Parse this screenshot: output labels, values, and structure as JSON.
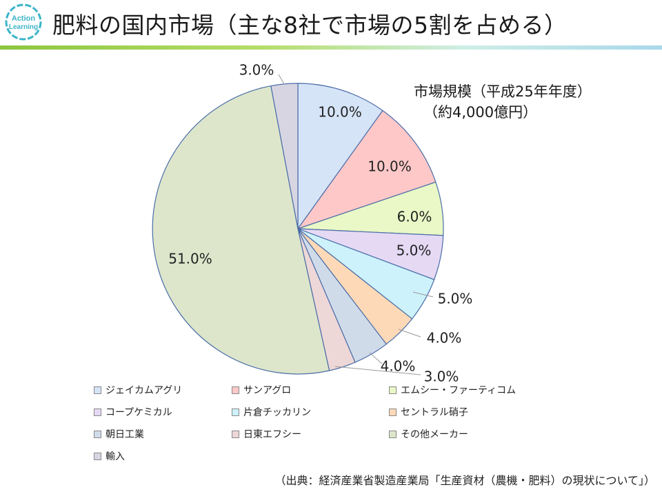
{
  "title": "肥料の国内市場（主な8社で市場の5割を占める）",
  "logo": {
    "line1": "Action",
    "line2": "Learning"
  },
  "market_size": {
    "line1": "市場規模（平成25年年度）",
    "line2": "（約4,000億円）"
  },
  "source": "（出典：経済産業省製造産業局「生産資材（農機・肥料）の現状について」）",
  "chart_data": {
    "type": "pie",
    "title": "",
    "categories": [
      "ジェイカムアグリ",
      "サンアグロ",
      "エムシー・ファーティコム",
      "コープケミカル",
      "片倉チッカリン",
      "セントラル硝子",
      "朝日工業",
      "日東エフシー",
      "その他メーカー",
      "輸入"
    ],
    "values": [
      10.0,
      10.0,
      6.0,
      5.0,
      5.0,
      4.0,
      4.0,
      3.0,
      51.0,
      3.0
    ],
    "labels": [
      "10.0%",
      "10.0%",
      "6.0%",
      "5.0%",
      "5.0%",
      "4.0%",
      "4.0%",
      "3.0%",
      "51.0%",
      "3.0%"
    ],
    "colors": [
      "#d6e4f8",
      "#ffc8c8",
      "#e9f8c6",
      "#e5d9f4",
      "#cdf2fb",
      "#fdd9b8",
      "#d0dbea",
      "#eed7d7",
      "#dde6cb",
      "#d8d5e3"
    ],
    "legend_position": "bottom"
  }
}
